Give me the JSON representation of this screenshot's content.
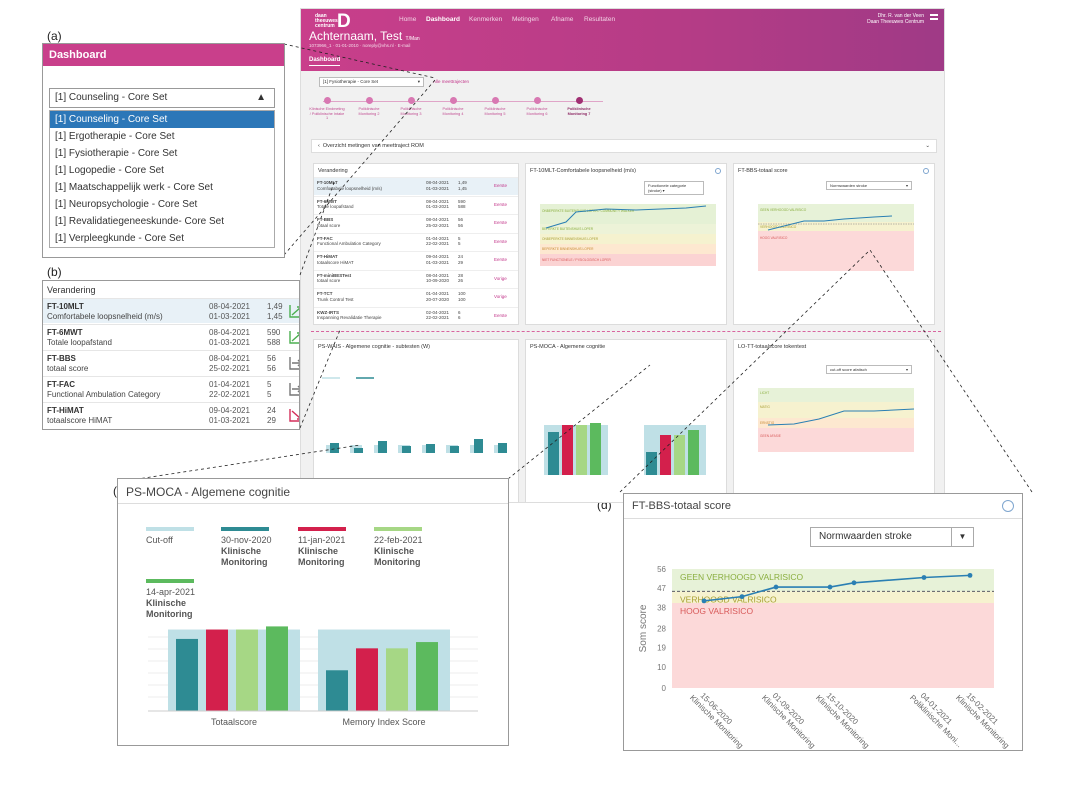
{
  "panel_labels": {
    "a": "(a)",
    "b": "(b)",
    "c": "(c)",
    "d": "(d)"
  },
  "app": {
    "logo_text": [
      "daan",
      "theeuwes",
      "centrum"
    ],
    "logo_letter": "D",
    "nav": [
      "Home",
      "Dashboard",
      "Kenmerken",
      "Metingen",
      "Afname",
      "Resultaten"
    ],
    "nav_active": "Dashboard",
    "user_name": "Dhr. R. van der Veen",
    "user_org": "Daan Theeuwes Centrum",
    "patient_name": "Achternaam, Test",
    "patient_suffix": "T/Man",
    "patient_info": "1073966_1 · 01-01-2010 · noreply@vhs.nl · E-mail",
    "dashboard_label": "Dashboard",
    "set_select": "[1] Fysiotherapie - Core Set",
    "alle_link": "Alle meettrajecten",
    "steps": [
      "Klinische Eindmeting / Poliklinische Intake 1",
      "Poliklinische Monitoring 2",
      "Poliklinische Monitoring 3",
      "Poliklinische Monitoring 4",
      "Poliklinische Monitoring 5",
      "Poliklinische Monitoring 6",
      "Poliklinische Monitoring 7"
    ],
    "overview_text": "Overzicht metingen van meettraject ROM",
    "panels": {
      "verandering": "Verandering",
      "tenmlt": "FT-10MLT-Comfortabele loopsnelheid (m/s)",
      "tenmlt_select": "Functionele categorie (stroke)",
      "bbs_small": "FT-BBS-totaal score",
      "bbs_small_select": "Normwaarden stroke",
      "wais": "PS-WAIS - Algemene cognitie - subtesten (W)",
      "moca_small": "PS-MOCA - Algemene cognitie",
      "lott": "LO-TT-totaalscore tokentest",
      "lott_select": "cut-off score afatisch"
    },
    "small_rows": [
      {
        "name": "FT-10MLT",
        "desc": "Comfortabele loopsnelheid (m/s)",
        "d1": "08-04-2021",
        "d2": "01-03-2021",
        "v1": "1,49",
        "v2": "1,45",
        "link": "Eerste"
      },
      {
        "name": "FT-6MWT",
        "desc": "Totale loopafstand",
        "d1": "08-04-2021",
        "d2": "01-03-2021",
        "v1": "590",
        "v2": "588",
        "link": "Eerste"
      },
      {
        "name": "FT-BBS",
        "desc": "totaal score",
        "d1": "08-04-2021",
        "d2": "25-02-2021",
        "v1": "56",
        "v2": "56",
        "link": "Eerste"
      },
      {
        "name": "FT-FAC",
        "desc": "Functional Ambulation Category",
        "d1": "01-04-2021",
        "d2": "22-02-2021",
        "v1": "5",
        "v2": "5",
        "link": "Eerste"
      },
      {
        "name": "FT-HiMAT",
        "desc": "totaalscore HiMAT",
        "d1": "09-04-2021",
        "d2": "01-03-2021",
        "v1": "24",
        "v2": "29",
        "link": "Eerste"
      },
      {
        "name": "FT-miniBESTest",
        "desc": "totaal score",
        "d1": "08-04-2021",
        "d2": "10-09-2020",
        "v1": "28",
        "v2": "26",
        "link": "Vorige"
      },
      {
        "name": "FT-TCT",
        "desc": "Trunk Control Test",
        "d1": "01-04-2021",
        "d2": "20-07-2020",
        "v1": "100",
        "v2": "100",
        "link": "Vorige"
      },
      {
        "name": "KWZ-IRTS",
        "desc": "Inspanning Revalidatie Therapie",
        "d1": "02-04-2021",
        "d2": "22-02-2021",
        "v1": "6",
        "v2": "6",
        "link": "Eerste"
      }
    ],
    "tenmlt_bands": [
      "ONBEPERKTE BUITENSHUIS LOPER / COMMUNITY WALKER",
      "BEPERKTE BUITENSHUIS LOPER",
      "ONBEPERKTE BINNENSHUIS LOPER",
      "BEPERKTE BINNENSHUIS LOPER",
      "NIET FUNCTIONELE / FYSIOLOGISCH LOPER"
    ],
    "small_bbs_bands": [
      "GEEN VERHOOGD VALRISICO",
      "VERHOOGD VALRISICO",
      "HOOG VALRISICO"
    ],
    "lott_bands": [
      "LICHT",
      "MATIG",
      "ERNSTIG",
      "GEEN AFASIE"
    ]
  },
  "dropdown": {
    "header": "Dashboard",
    "current": "[1] Counseling - Core Set",
    "options": [
      "[1] Counseling - Core Set",
      "[1] Ergotherapie - Core Set",
      "[1] Fysiotherapie - Core Set",
      "[1] Logopedie - Core Set",
      "[1] Maatschappelijk werk - Core Set",
      "[1] Neuropsychologie - Core Set",
      "[1] Revalidatiegeneeskunde- Core Set",
      "[1] Verpleegkunde - Core Set"
    ],
    "selected_index": 0
  },
  "verandering": {
    "title": "Verandering",
    "rows": [
      {
        "name": "FT-10MLT",
        "desc": "Comfortabele loopsnelheid (m/s)",
        "d1": "08-04-2021",
        "d2": "01-03-2021",
        "v1": "1,49",
        "v2": "1,45",
        "trend": "up",
        "link": "Eerste"
      },
      {
        "name": "FT-6MWT",
        "desc": "Totale loopafstand",
        "d1": "08-04-2021",
        "d2": "01-03-2021",
        "v1": "590",
        "v2": "588",
        "trend": "up",
        "link": "Eerste"
      },
      {
        "name": "FT-BBS",
        "desc": "totaal score",
        "d1": "08-04-2021",
        "d2": "25-02-2021",
        "v1": "56",
        "v2": "56",
        "trend": "flat",
        "link": "Eerste"
      },
      {
        "name": "FT-FAC",
        "desc": "Functional Ambulation Category",
        "d1": "01-04-2021",
        "d2": "22-02-2021",
        "v1": "5",
        "v2": "5",
        "trend": "flat",
        "link": "Eerste"
      },
      {
        "name": "FT-HiMAT",
        "desc": "totaalscore HiMAT",
        "d1": "09-04-2021",
        "d2": "01-03-2021",
        "v1": "24",
        "v2": "29",
        "trend": "down",
        "link": "Eerste"
      }
    ],
    "colors": {
      "up": "#4caf50",
      "flat": "#777777",
      "down": "#d32f5a",
      "link": "#c2358a"
    }
  },
  "chart_data": [
    {
      "type": "bar",
      "title": "PS-MOCA - Algemene cognitie",
      "categories": [
        "Totaalscore",
        "Memory Index Score"
      ],
      "series": [
        {
          "name": "Cut-off",
          "values": [
            26,
            26
          ],
          "color": "#bfe0e6"
        },
        {
          "name": "30-nov-2020 Klinische Monitoring",
          "values": [
            23,
            13
          ],
          "color": "#2e8b93"
        },
        {
          "name": "11-jan-2021 Klinische Monitoring",
          "values": [
            26,
            20
          ],
          "color": "#d3204c"
        },
        {
          "name": "22-feb-2021 Klinische Monitoring",
          "values": [
            26,
            20
          ],
          "color": "#a6d785"
        },
        {
          "name": "14-apr-2021 Klinische Monitoring",
          "values": [
            27,
            22
          ],
          "color": "#5cba5e"
        }
      ],
      "legend": [
        {
          "date": "Cut-off",
          "l1": "",
          "l2": ""
        },
        {
          "date": "30-nov-2020",
          "l1": "Klinische",
          "l2": "Monitoring"
        },
        {
          "date": "11-jan-2021",
          "l1": "Klinische",
          "l2": "Monitoring"
        },
        {
          "date": "22-feb-2021",
          "l1": "Klinische",
          "l2": "Monitoring"
        },
        {
          "date": "14-apr-2021",
          "l1": "Klinische",
          "l2": "Monitoring"
        }
      ],
      "ylim": [
        0,
        30
      ]
    },
    {
      "type": "line",
      "title": "FT-BBS-totaal score",
      "select": "Normwaarden stroke",
      "ylabel": "Som score",
      "yticks": [
        0,
        10,
        19,
        28,
        38,
        47,
        56
      ],
      "ylim": [
        0,
        56
      ],
      "x": [
        "15-06-2020\nKlinische Monitoring",
        "01-09-2020\nKlinische Monitoring",
        "15-10-2020\nKlinische Monitoring",
        "04-01-2021\nPoliklinische Moni...",
        "15-02-2021\nKlinische Monitoring"
      ],
      "points": [
        {
          "x": "15-06-2020",
          "y": 41
        },
        {
          "x": "~",
          "y": 43
        },
        {
          "x": "01-09-2020",
          "y": 47.5
        },
        {
          "x": "15-10-2020",
          "y": 47.5
        },
        {
          "x": "~",
          "y": 49.5
        },
        {
          "x": "04-01-2021",
          "y": 52
        },
        {
          "x": "15-02-2021",
          "y": 53
        }
      ],
      "cutoff": 45.5,
      "bands": [
        {
          "label": "GEEN VERHOOGD VALRISICO",
          "from": 45.5,
          "to": 56,
          "color": "#e7f2d8",
          "text": "#8aae3f"
        },
        {
          "label": "VERHOOGD VALRISICO",
          "from": 40,
          "to": 45.5,
          "color": "#f6f2cf",
          "text": "#a9a035"
        },
        {
          "label": "HOOG VALRISICO",
          "from": 0,
          "to": 40,
          "color": "#fcd9d9",
          "text": "#d85a5a"
        }
      ]
    }
  ]
}
